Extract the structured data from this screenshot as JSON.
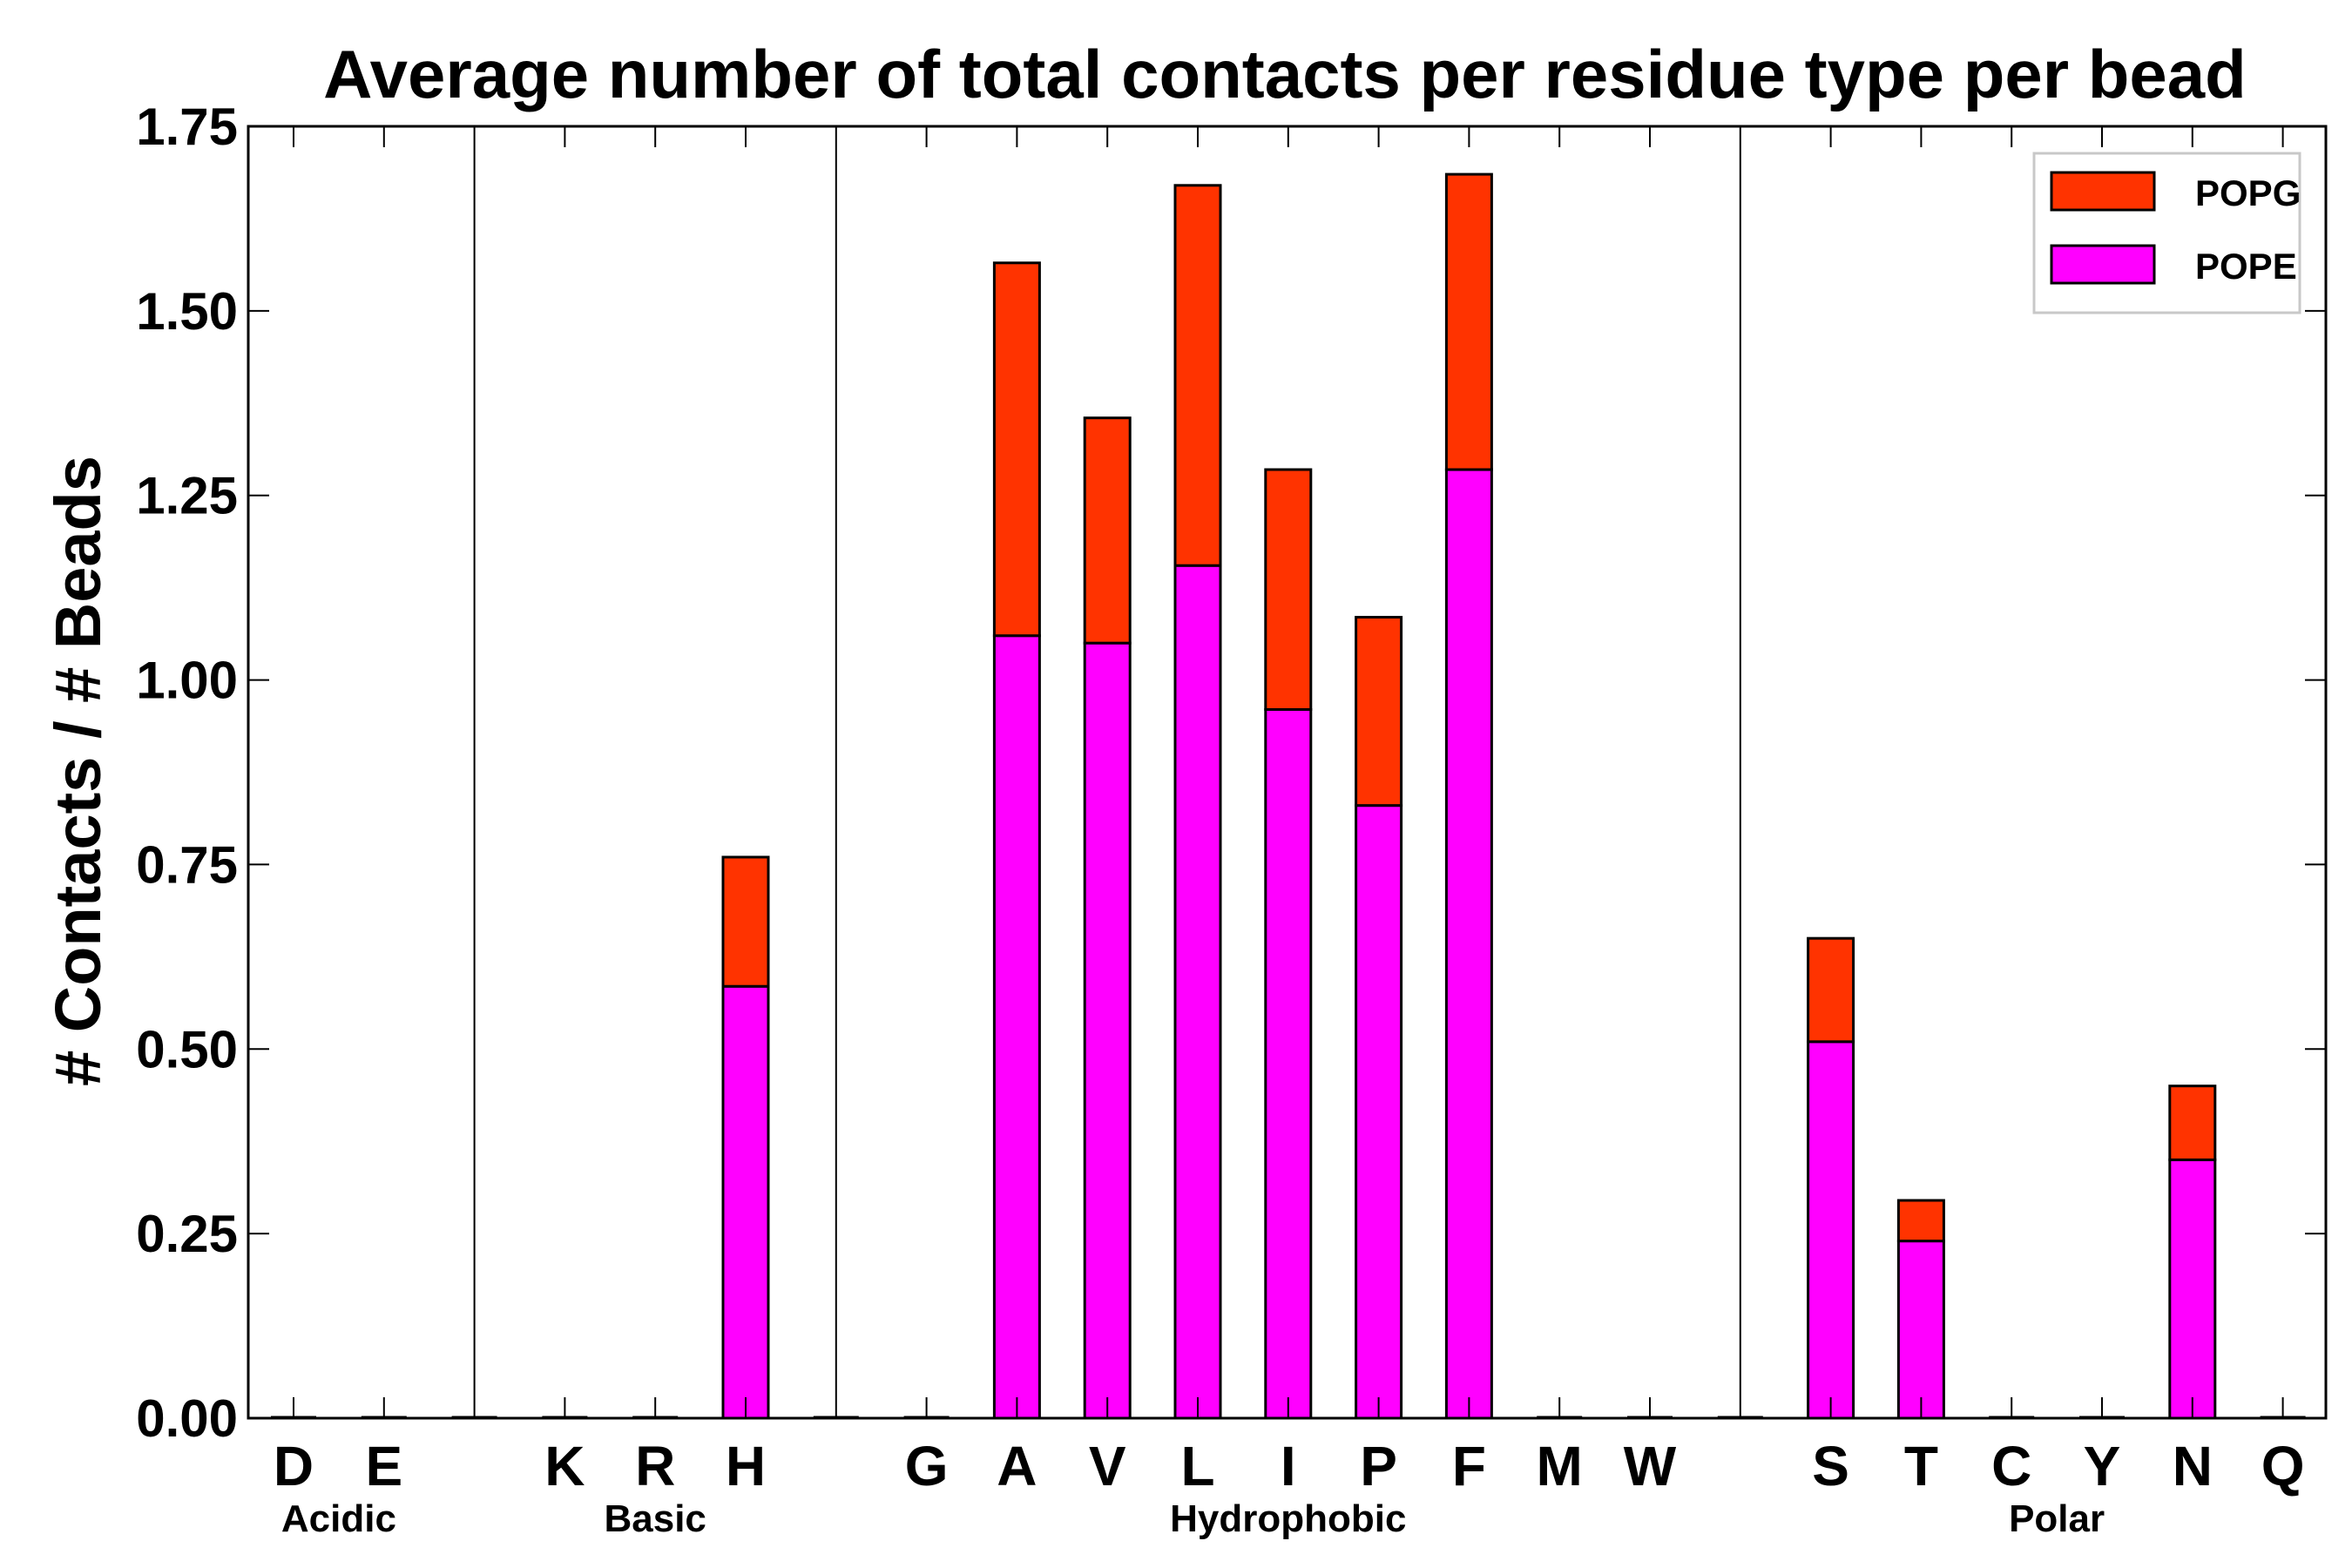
{
  "chart_data": {
    "type": "bar",
    "stacked": true,
    "title": "Average number of total contacts per residue type per bead",
    "xlabel": "",
    "ylabel": "# Contacts / # Beads",
    "ylim": [
      0,
      1.75
    ],
    "yticks": [
      "0.00",
      "0.25",
      "0.50",
      "0.75",
      "1.00",
      "1.25",
      "1.50",
      "1.75"
    ],
    "ytick_values": [
      0,
      0.25,
      0.5,
      0.75,
      1.0,
      1.25,
      1.5,
      1.75
    ],
    "slots": [
      "D",
      "E",
      "",
      "K",
      "R",
      "H",
      "",
      "G",
      "A",
      "V",
      "L",
      "I",
      "P",
      "F",
      "M",
      "W",
      "",
      "S",
      "T",
      "C",
      "Y",
      "N",
      "Q"
    ],
    "groups": [
      {
        "label": "Acidic",
        "first": 0,
        "last": 1
      },
      {
        "label": "Basic",
        "first": 3,
        "last": 5
      },
      {
        "label": "Hydrophobic",
        "first": 7,
        "last": 15
      },
      {
        "label": "Polar",
        "first": 17,
        "last": 22
      }
    ],
    "separators": [
      2,
      6,
      16
    ],
    "series": [
      {
        "name": "POPE",
        "color": "#ff00ff",
        "values": [
          0,
          0,
          0,
          0,
          0,
          0.585,
          0,
          0,
          1.06,
          1.05,
          1.155,
          0.96,
          0.83,
          1.285,
          0,
          0,
          0,
          0.51,
          0.24,
          0,
          0,
          0.35,
          0
        ]
      },
      {
        "name": "POPG",
        "color": "#ff3300",
        "values": [
          0,
          0,
          0,
          0,
          0,
          0.175,
          0,
          0,
          0.505,
          0.305,
          0.515,
          0.325,
          0.255,
          0.4,
          0,
          0,
          0,
          0.14,
          0.055,
          0,
          0,
          0.1,
          0
        ]
      }
    ],
    "legend": {
      "position": "top-right",
      "entries": [
        "POPG",
        "POPE"
      ]
    }
  }
}
